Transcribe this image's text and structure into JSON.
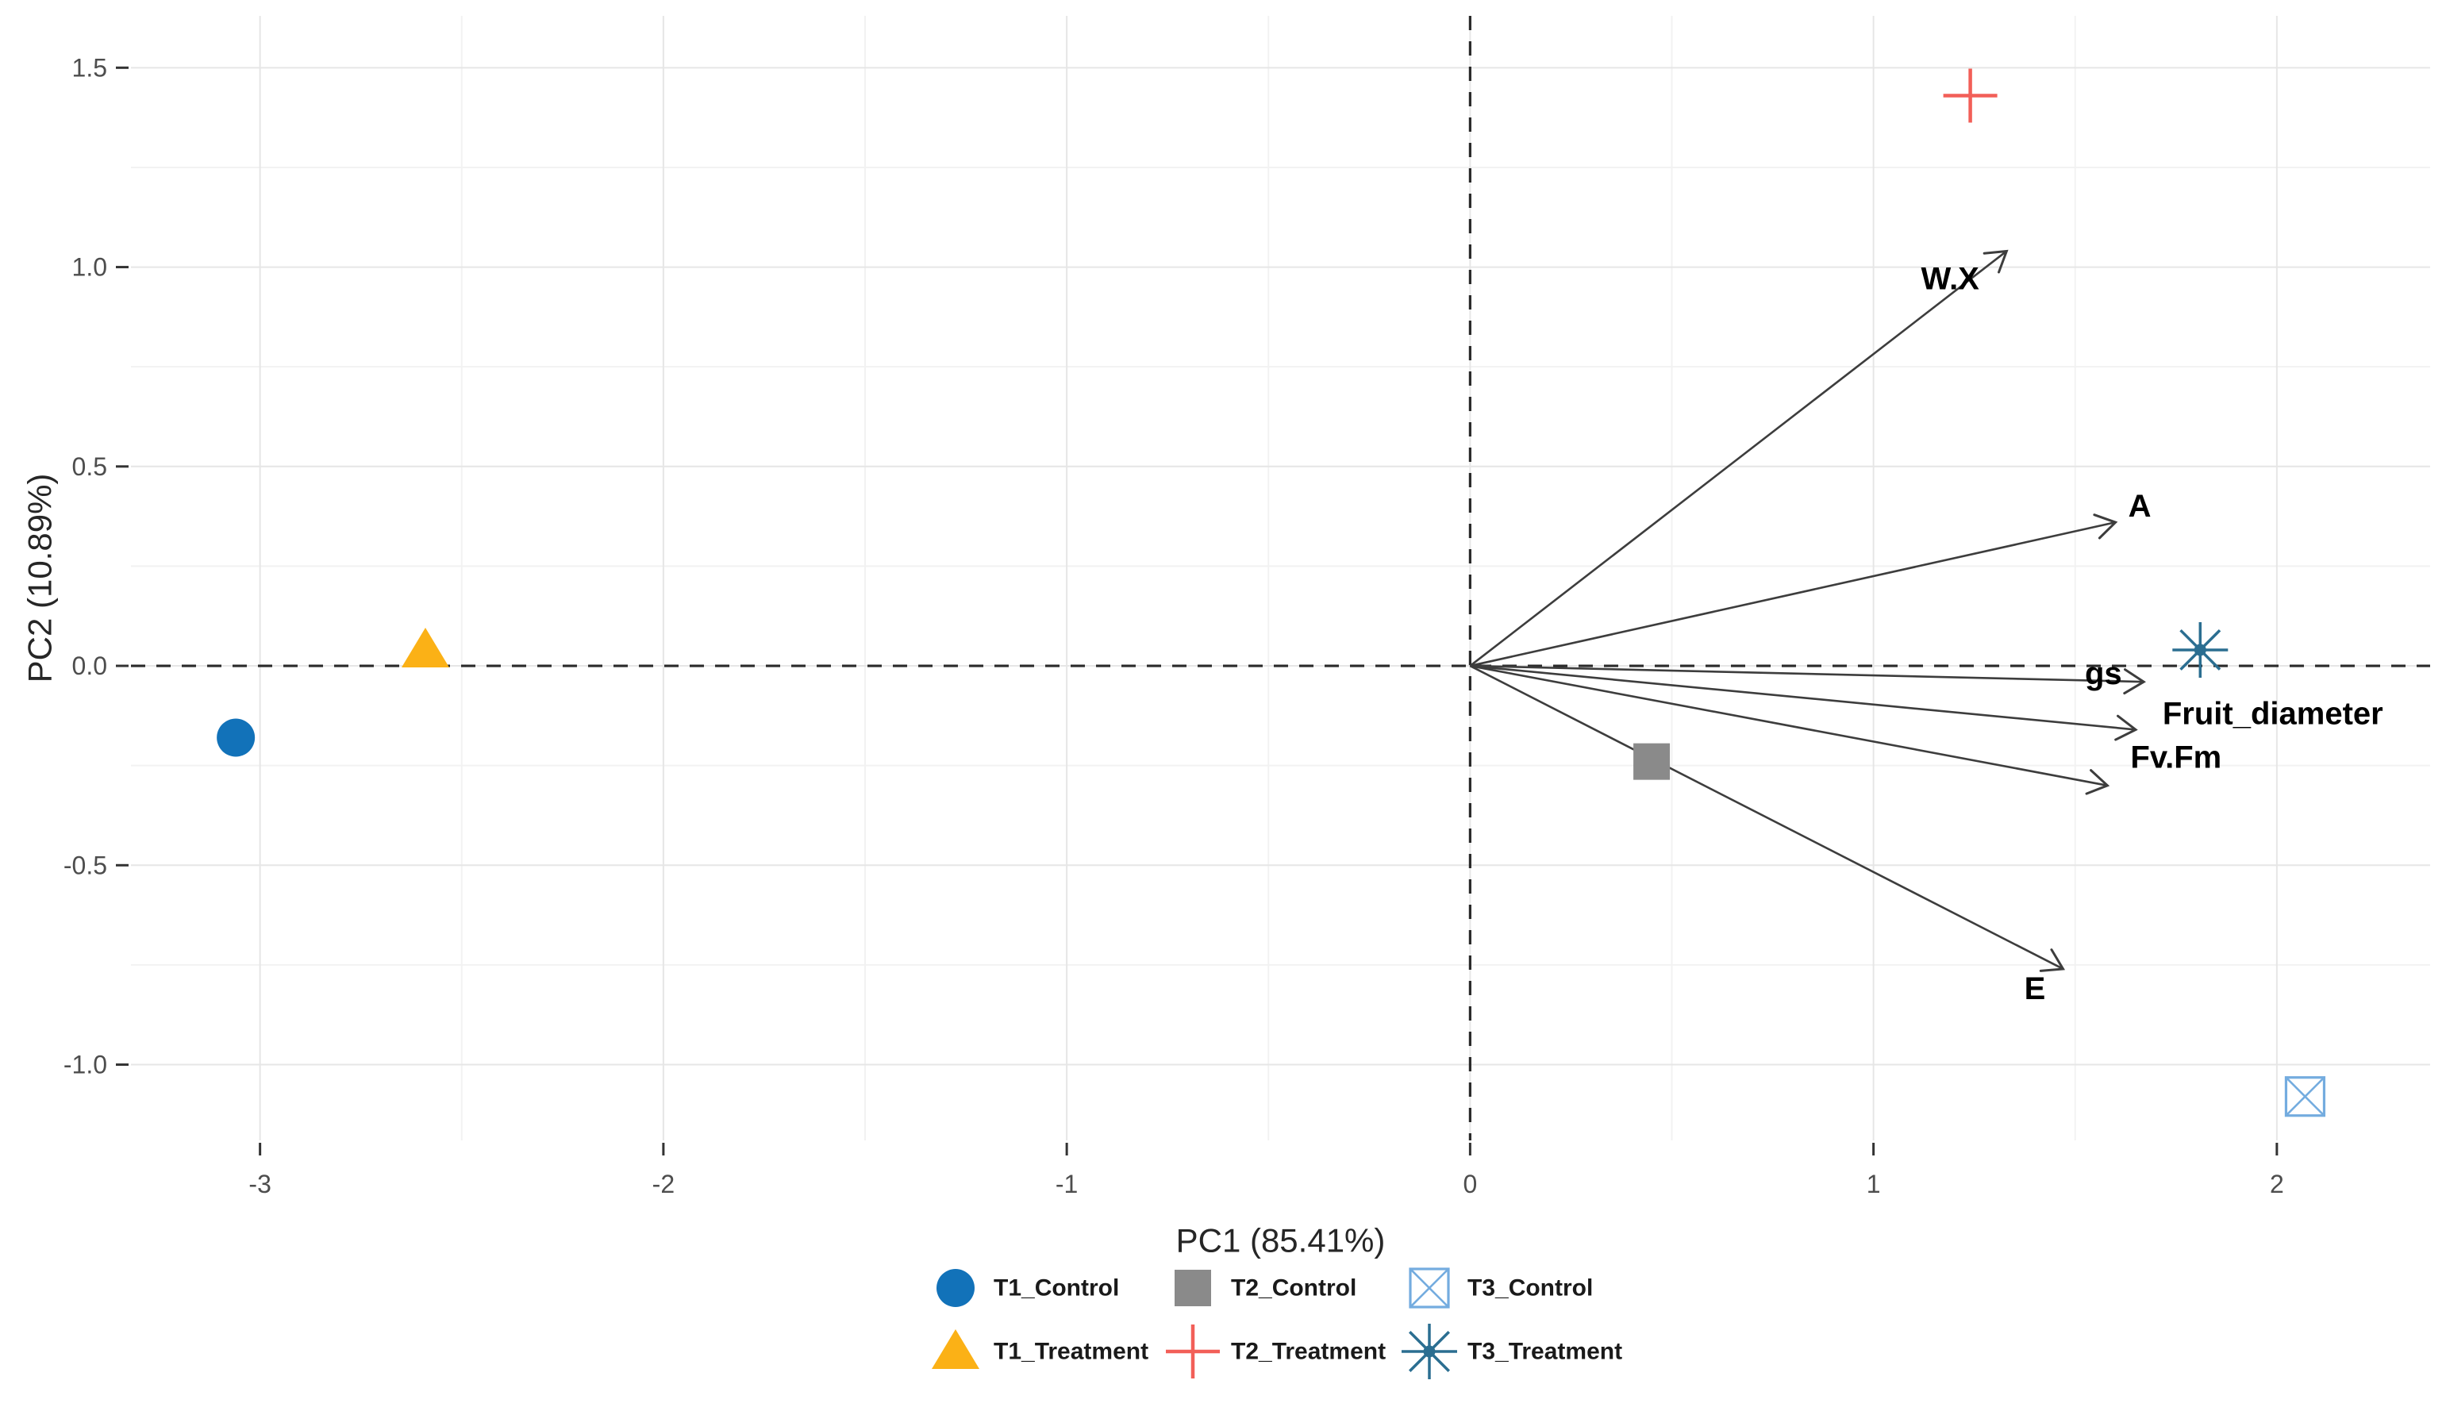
{
  "chart_data": {
    "type": "scatter",
    "title": "",
    "xlabel": "PC1 (85.41%)",
    "ylabel": "PC2 (10.89%)",
    "xlim": [
      -3.32,
      2.38
    ],
    "ylim": [
      -1.19,
      1.63
    ],
    "x_ticks": [
      -3,
      -2,
      -1,
      0,
      1,
      2
    ],
    "x_tick_labels": [
      "-3",
      "-2",
      "-1",
      "0",
      "1",
      "2"
    ],
    "y_ticks": [
      -1.0,
      -0.5,
      0.0,
      0.5,
      1.0,
      1.5
    ],
    "y_tick_labels": [
      "-1.0",
      "-0.5",
      "0.0",
      "0.5",
      "1.0",
      "1.5"
    ],
    "grid": true,
    "legend_position": "bottom",
    "zero_lines": {
      "x": 0,
      "y": 0,
      "style": "dashed"
    },
    "series": [
      {
        "name": "T1_Control",
        "marker": "circle",
        "color": "#1272B9",
        "points": [
          [
            -3.06,
            -0.18
          ]
        ]
      },
      {
        "name": "T1_Treatment",
        "marker": "triangle",
        "color": "#FBB116",
        "points": [
          [
            -2.59,
            0.04
          ]
        ]
      },
      {
        "name": "T2_Control",
        "marker": "square",
        "color": "#8A8A8A",
        "points": [
          [
            0.45,
            -0.24
          ]
        ]
      },
      {
        "name": "T2_Treatment",
        "marker": "plus",
        "color": "#F25F58",
        "points": [
          [
            1.24,
            1.43
          ]
        ]
      },
      {
        "name": "T3_Control",
        "marker": "square-x",
        "color": "#74ACDF",
        "points": [
          [
            2.07,
            -1.08
          ]
        ]
      },
      {
        "name": "T3_Treatment",
        "marker": "asterisk",
        "color": "#2B6E91",
        "points": [
          [
            1.81,
            0.04
          ]
        ]
      }
    ],
    "loadings": [
      {
        "name": "W.X",
        "x": 1.33,
        "y": 1.04,
        "label_x": 1.19,
        "label_y": 0.97
      },
      {
        "name": "A",
        "x": 1.6,
        "y": 0.36,
        "label_x": 1.66,
        "label_y": 0.4
      },
      {
        "name": "gs",
        "x": 1.67,
        "y": -0.04,
        "label_x": 1.57,
        "label_y": -0.02
      },
      {
        "name": "Fruit_diameter",
        "x": 1.65,
        "y": -0.16,
        "label_x": 1.99,
        "label_y": -0.12
      },
      {
        "name": "Fv.Fm",
        "x": 1.58,
        "y": -0.3,
        "label_x": 1.75,
        "label_y": -0.23
      },
      {
        "name": "E",
        "x": 1.47,
        "y": -0.76,
        "label_x": 1.4,
        "label_y": -0.81
      }
    ],
    "legend_rows": [
      [
        "T1_Control",
        "T2_Control",
        "T3_Control"
      ],
      [
        "T1_Treatment",
        "T2_Treatment",
        "T3_Treatment"
      ]
    ],
    "style": {
      "background": "#FFFFFF",
      "grid_major_color": "#E6E6E6",
      "grid_minor_color": "#F2F2F2",
      "zero_line_color": "#2A2A2A",
      "arrow_color": "#3D3D3D",
      "tick_label_color": "#4D4D4D",
      "axis_title_color": "#262626",
      "loading_label_color": "#000000",
      "legend_text_color": "#1A1A1A"
    }
  }
}
